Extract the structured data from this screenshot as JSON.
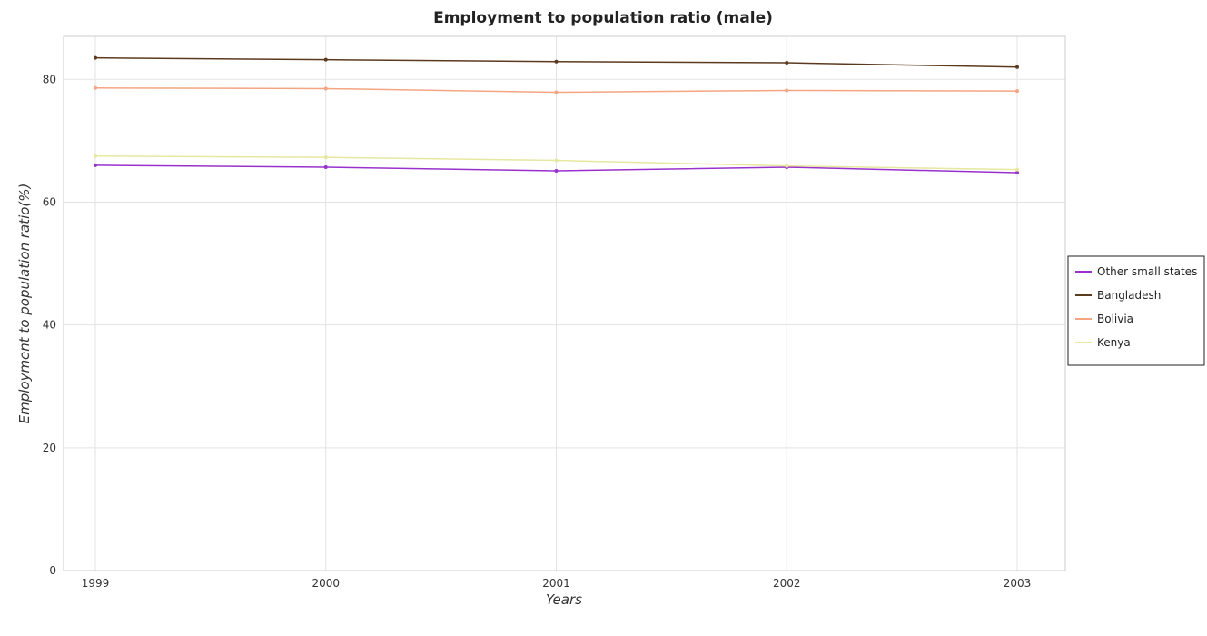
{
  "chart_data": {
    "type": "line",
    "title": "Employment to population ratio (male)",
    "xlabel": "Years",
    "ylabel": "Employment to population ratio(%)",
    "x": [
      "1999",
      "2000",
      "2001",
      "2002",
      "2003"
    ],
    "ylim": [
      0,
      87
    ],
    "yticks": [
      0,
      20,
      40,
      60,
      80
    ],
    "grid": true,
    "legend_position": "right",
    "series": [
      {
        "name": "Other small states",
        "color": "#9932CC",
        "values": [
          66.0,
          65.7,
          65.1,
          65.7,
          64.8
        ]
      },
      {
        "name": "Bangladesh",
        "color": "#5C3A1E",
        "values": [
          83.5,
          83.2,
          82.9,
          82.7,
          82.0
        ]
      },
      {
        "name": "Bolivia",
        "color": "#F4A582",
        "values": [
          78.6,
          78.5,
          77.9,
          78.2,
          78.1
        ]
      },
      {
        "name": "Kenya",
        "color": "#E6E8A0",
        "values": [
          67.5,
          67.3,
          66.8,
          65.9,
          65.3
        ]
      }
    ]
  }
}
